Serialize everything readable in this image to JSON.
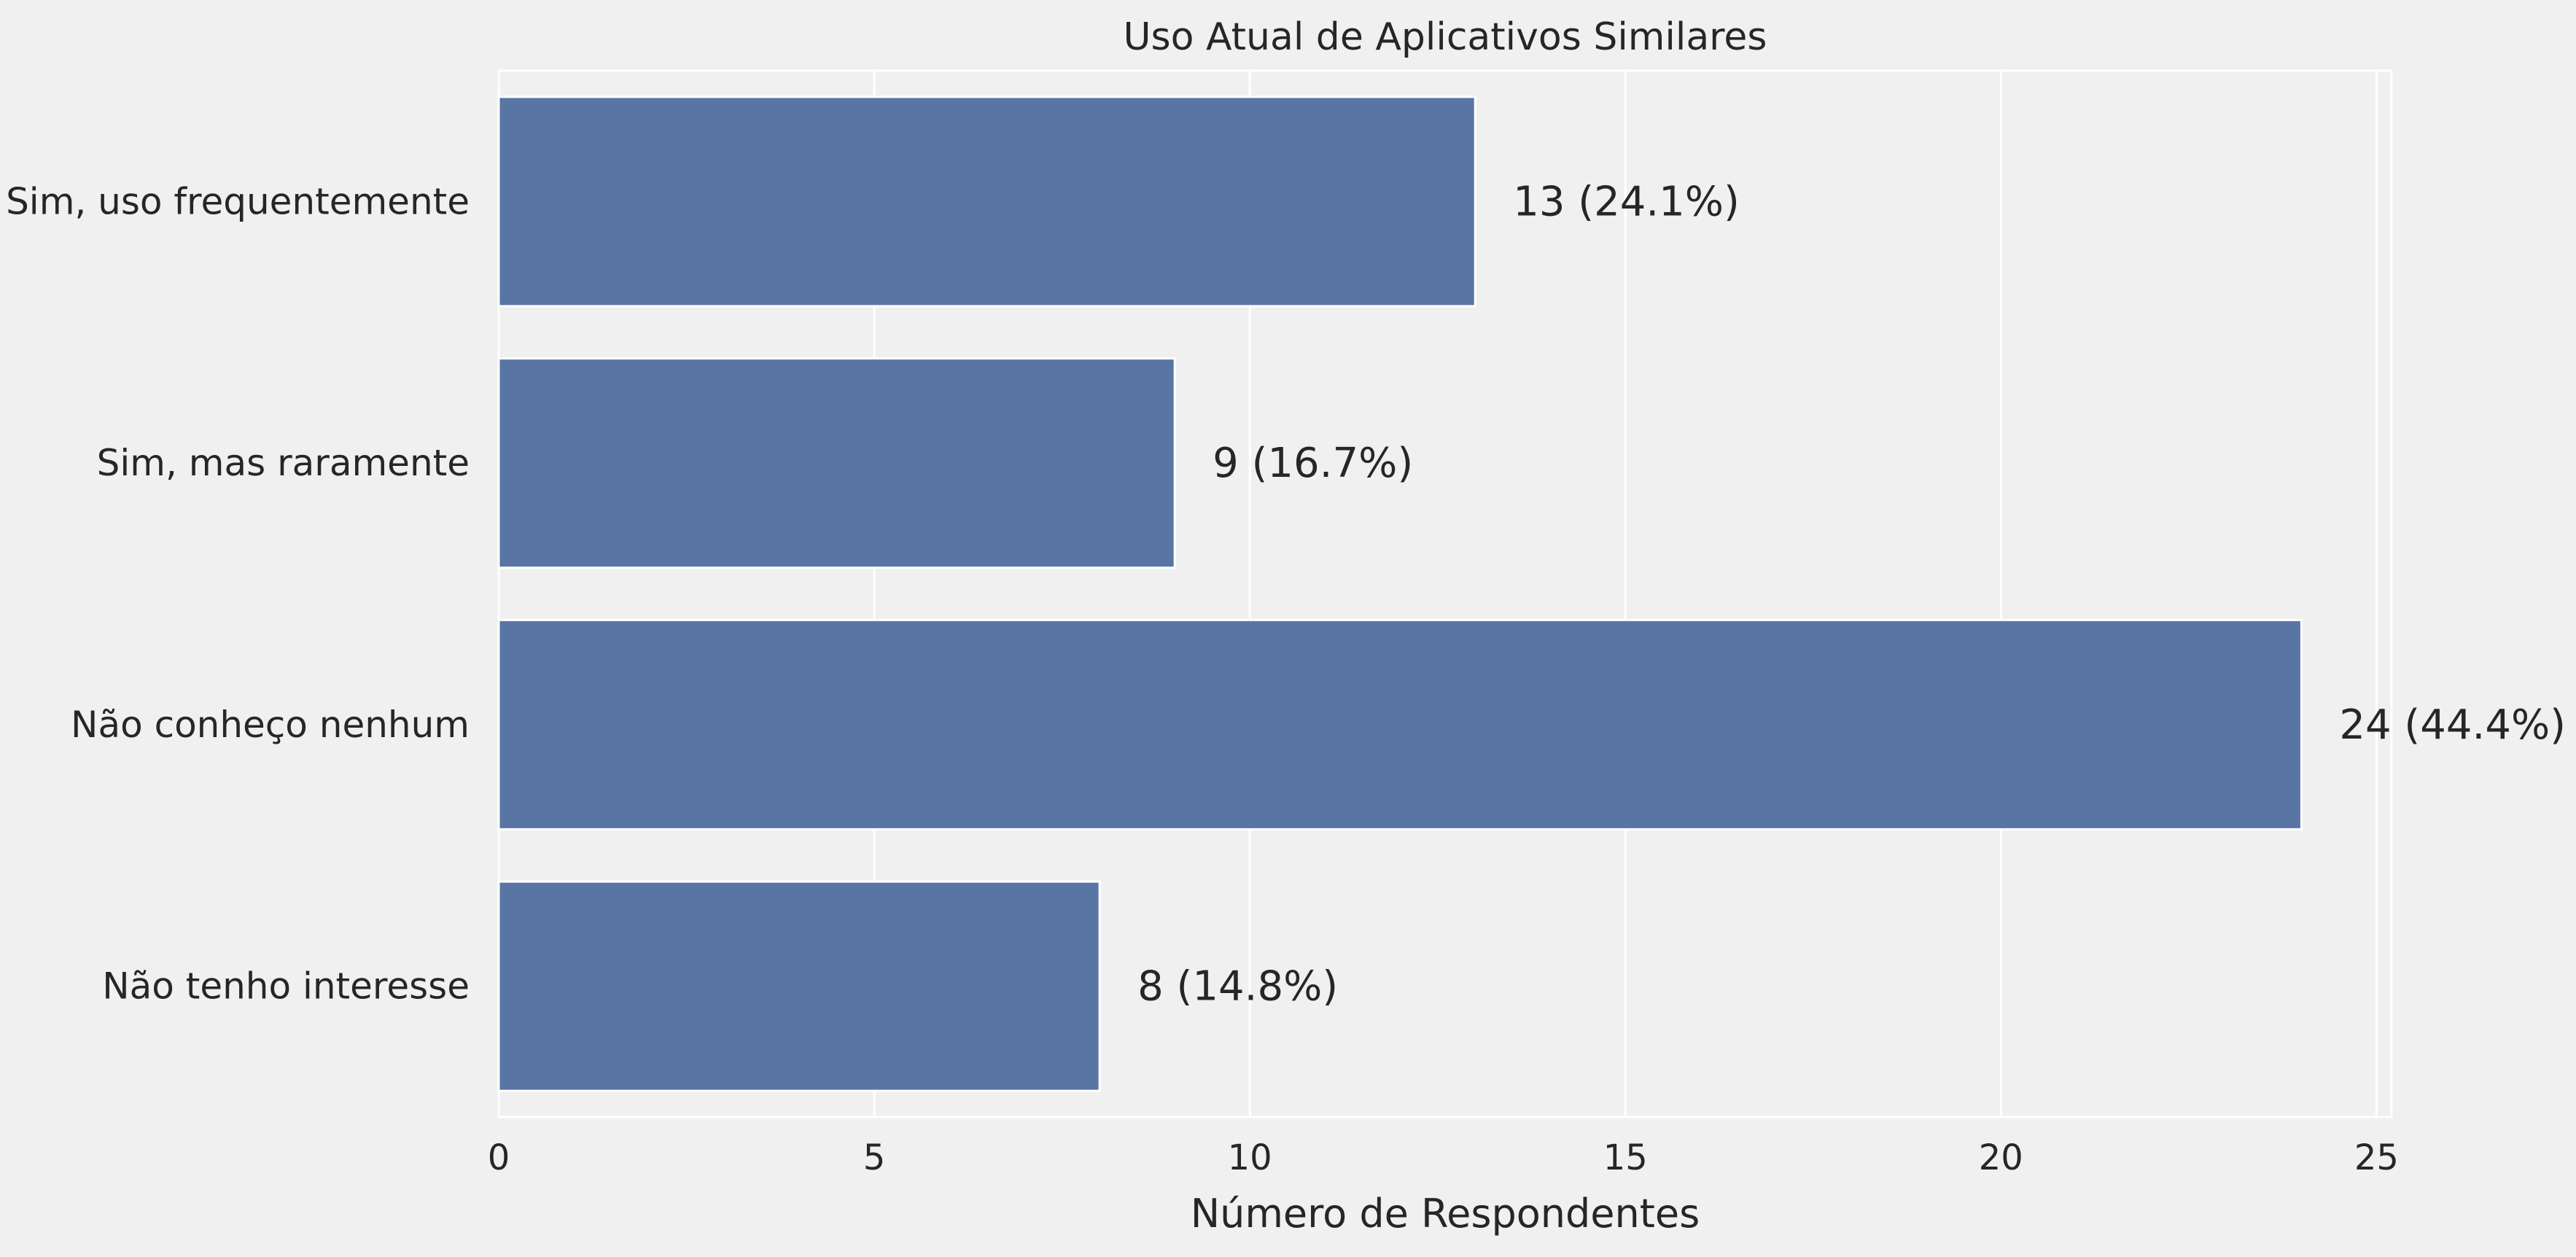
{
  "chart_data": {
    "type": "bar",
    "orientation": "horizontal",
    "title": "Uso Atual de Aplicativos Similares",
    "xlabel": "Número de Respondentes",
    "ylabel": "",
    "categories": [
      "Sim, uso frequentemente",
      "Sim, mas raramente",
      "Não conheço nenhum",
      "Não tenho interesse"
    ],
    "values": [
      13,
      9,
      24,
      8
    ],
    "data_labels": [
      "13 (24.1%)",
      "9 (16.7%)",
      "24 (44.4%)",
      "8 (14.8%)"
    ],
    "xlim": [
      0,
      25.2
    ],
    "xticks": [
      0,
      5,
      10,
      15,
      20,
      25
    ],
    "xtick_labels": [
      "0",
      "5",
      "10",
      "15",
      "20",
      "25"
    ],
    "grid": true,
    "bar_color": "#5975a4",
    "plot_background": "#f0f0f0"
  }
}
